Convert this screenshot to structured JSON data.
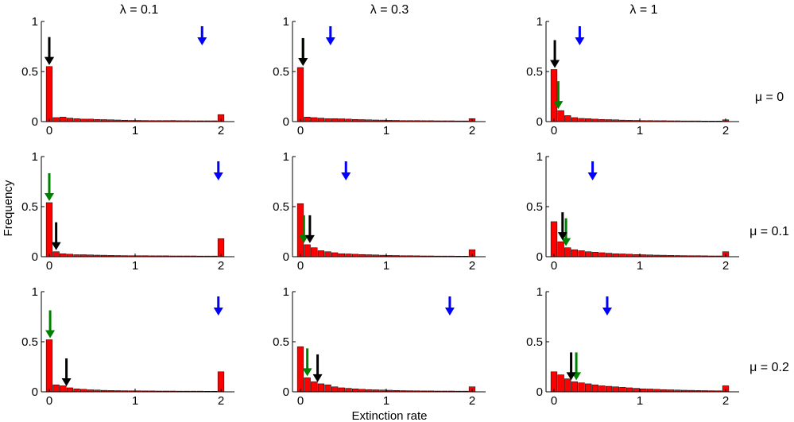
{
  "figure": {
    "ylabel": "Frequency",
    "xlabel": "Extinction rate",
    "col_titles": [
      "λ = 0.1",
      "λ = 0.3",
      "λ = 1"
    ],
    "row_labels": [
      "μ = 0",
      "μ = 0.1",
      "μ = 0.2"
    ]
  },
  "colors": {
    "bar": "#ff0000",
    "green_arrow": "#008000",
    "black_arrow": "#000000",
    "blue_arrow": "#0000ff"
  },
  "chart_data": [
    {
      "type": "bar",
      "lambda": "0.1",
      "mu": "0",
      "xlim": [
        0,
        2
      ],
      "ylim": [
        0,
        1
      ],
      "xticks": [
        "0",
        "1",
        "2"
      ],
      "yticks": [
        "0",
        "0.5",
        "1"
      ],
      "values": [
        0.55,
        0.04,
        0.045,
        0.035,
        0.03,
        0.025,
        0.025,
        0.022,
        0.02,
        0.018,
        0.016,
        0.014,
        0.012,
        0.012,
        0.011,
        0.01,
        0.01,
        0.01,
        0.011,
        0.009,
        0.009,
        0.008,
        0.008,
        0.008,
        0.008,
        0.07
      ],
      "arrows": {
        "green": 0.0,
        "black": 0.0,
        "blue": 1.78
      }
    },
    {
      "type": "bar",
      "lambda": "0.3",
      "mu": "0",
      "xlim": [
        0,
        2
      ],
      "ylim": [
        0,
        1
      ],
      "xticks": [
        "0",
        "1",
        "2"
      ],
      "yticks": [
        "0",
        "0.5",
        "1"
      ],
      "values": [
        0.54,
        0.045,
        0.04,
        0.035,
        0.03,
        0.03,
        0.028,
        0.025,
        0.022,
        0.02,
        0.018,
        0.016,
        0.015,
        0.013,
        0.012,
        0.01,
        0.01,
        0.01,
        0.009,
        0.009,
        0.008,
        0.008,
        0.008,
        0.007,
        0.007,
        0.03
      ],
      "arrows": {
        "green": 0.03,
        "black": 0.03,
        "blue": 0.35
      }
    },
    {
      "type": "bar",
      "lambda": "1",
      "mu": "0",
      "xlim": [
        0,
        2
      ],
      "ylim": [
        0,
        1
      ],
      "xticks": [
        "0",
        "1",
        "2"
      ],
      "yticks": [
        "0",
        "0.5",
        "1"
      ],
      "values": [
        0.52,
        0.11,
        0.06,
        0.04,
        0.032,
        0.03,
        0.025,
        0.022,
        0.02,
        0.018,
        0.015,
        0.013,
        0.012,
        0.01,
        0.01,
        0.009,
        0.009,
        0.008,
        0.008,
        0.007,
        0.007,
        0.007,
        0.006,
        0.006,
        0.006,
        0.018
      ],
      "arrows": {
        "green": 0.05,
        "black": 0.01,
        "blue": 0.3
      }
    },
    {
      "type": "bar",
      "lambda": "0.1",
      "mu": "0.1",
      "xlim": [
        0,
        2
      ],
      "ylim": [
        0,
        1
      ],
      "xticks": [
        "0",
        "1",
        "2"
      ],
      "yticks": [
        "0",
        "0.5",
        "1"
      ],
      "values": [
        0.54,
        0.05,
        0.03,
        0.025,
        0.02,
        0.02,
        0.018,
        0.016,
        0.015,
        0.013,
        0.012,
        0.011,
        0.01,
        0.01,
        0.01,
        0.009,
        0.009,
        0.009,
        0.008,
        0.008,
        0.008,
        0.008,
        0.007,
        0.007,
        0.007,
        0.18
      ],
      "arrows": {
        "green": 0.0,
        "black": 0.08,
        "blue": 1.97
      }
    },
    {
      "type": "bar",
      "lambda": "0.3",
      "mu": "0.1",
      "xlim": [
        0,
        2
      ],
      "ylim": [
        0,
        1
      ],
      "xticks": [
        "0",
        "1",
        "2"
      ],
      "yticks": [
        "0",
        "0.5",
        "1"
      ],
      "values": [
        0.53,
        0.12,
        0.09,
        0.06,
        0.05,
        0.04,
        0.03,
        0.028,
        0.025,
        0.022,
        0.02,
        0.018,
        0.015,
        0.013,
        0.012,
        0.01,
        0.01,
        0.009,
        0.008,
        0.008,
        0.007,
        0.007,
        0.007,
        0.006,
        0.006,
        0.07
      ],
      "arrows": {
        "green": 0.04,
        "black": 0.11,
        "blue": 0.53
      }
    },
    {
      "type": "bar",
      "lambda": "1",
      "mu": "0.1",
      "xlim": [
        0,
        2
      ],
      "ylim": [
        0,
        1
      ],
      "xticks": [
        "0",
        "1",
        "2"
      ],
      "yticks": [
        "0",
        "0.5",
        "1"
      ],
      "values": [
        0.35,
        0.15,
        0.09,
        0.07,
        0.06,
        0.05,
        0.045,
        0.04,
        0.035,
        0.03,
        0.028,
        0.025,
        0.022,
        0.02,
        0.018,
        0.016,
        0.015,
        0.013,
        0.012,
        0.011,
        0.01,
        0.01,
        0.009,
        0.008,
        0.008,
        0.05
      ],
      "arrows": {
        "green": 0.14,
        "black": 0.1,
        "blue": 0.45
      }
    },
    {
      "type": "bar",
      "lambda": "0.1",
      "mu": "0.2",
      "xlim": [
        0,
        2
      ],
      "ylim": [
        0,
        1
      ],
      "xticks": [
        "0",
        "1",
        "2"
      ],
      "yticks": [
        "0",
        "0.5",
        "1"
      ],
      "values": [
        0.52,
        0.07,
        0.06,
        0.04,
        0.03,
        0.025,
        0.02,
        0.018,
        0.015,
        0.013,
        0.012,
        0.011,
        0.01,
        0.01,
        0.009,
        0.009,
        0.008,
        0.008,
        0.008,
        0.007,
        0.007,
        0.007,
        0.007,
        0.006,
        0.006,
        0.2
      ],
      "arrows": {
        "green": 0.01,
        "black": 0.2,
        "blue": 1.97
      }
    },
    {
      "type": "bar",
      "lambda": "0.3",
      "mu": "0.2",
      "xlim": [
        0,
        2
      ],
      "ylim": [
        0,
        1
      ],
      "xticks": [
        "0",
        "1",
        "2"
      ],
      "yticks": [
        "0",
        "0.5",
        "1"
      ],
      "values": [
        0.45,
        0.14,
        0.1,
        0.08,
        0.07,
        0.05,
        0.04,
        0.035,
        0.03,
        0.025,
        0.022,
        0.02,
        0.018,
        0.016,
        0.014,
        0.012,
        0.011,
        0.01,
        0.009,
        0.009,
        0.008,
        0.008,
        0.008,
        0.007,
        0.007,
        0.05
      ],
      "arrows": {
        "green": 0.08,
        "black": 0.2,
        "blue": 1.74
      }
    },
    {
      "type": "bar",
      "lambda": "1",
      "mu": "0.2",
      "xlim": [
        0,
        2
      ],
      "ylim": [
        0,
        1
      ],
      "xticks": [
        "0",
        "1",
        "2"
      ],
      "yticks": [
        "0",
        "0.5",
        "1"
      ],
      "values": [
        0.2,
        0.17,
        0.13,
        0.1,
        0.09,
        0.08,
        0.07,
        0.06,
        0.055,
        0.05,
        0.045,
        0.04,
        0.035,
        0.03,
        0.028,
        0.025,
        0.022,
        0.02,
        0.018,
        0.016,
        0.015,
        0.013,
        0.012,
        0.011,
        0.01,
        0.06
      ],
      "arrows": {
        "green": 0.26,
        "black": 0.2,
        "blue": 0.62
      }
    }
  ]
}
